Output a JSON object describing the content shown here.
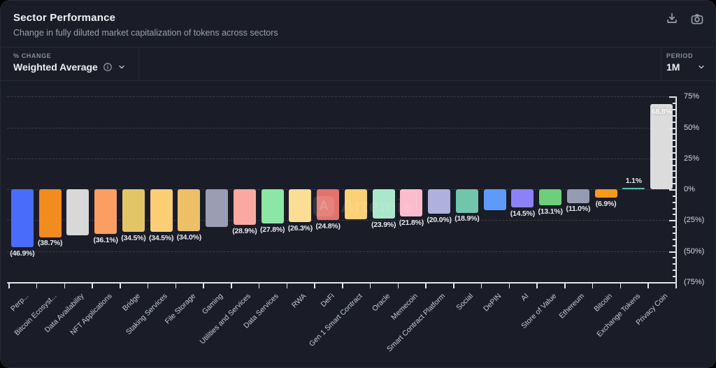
{
  "header": {
    "title": "Sector Performance",
    "subtitle": "Change in fully diluted market capitalization of tokens across sectors",
    "icons": [
      "download-icon",
      "camera-icon"
    ]
  },
  "controls": {
    "metric_label": "% CHANGE",
    "metric_value": "Weighted Average",
    "metric_icons": [
      "info-icon",
      "chevron-down-icon"
    ],
    "period_label": "PERIOD",
    "period_value": "1M",
    "period_icons": [
      "chevron-down-icon"
    ]
  },
  "watermark": {
    "text": "Artemis",
    "logo_glyph": "A"
  },
  "theme": {
    "card_bg": "#1A1D28",
    "text": "#EDEFF3",
    "muted_text": "#9AA0AC",
    "axis": "#E3E5EA",
    "grid": "rgba(255,255,255,0.15)"
  },
  "chart_data": {
    "type": "bar",
    "title": "Sector Performance",
    "xlabel": "",
    "ylabel": "% change",
    "ylim": [
      -75,
      75
    ],
    "grid": "horizontal-dashed",
    "legend": "none",
    "y_ticks": [
      {
        "value": 75,
        "label": "75%"
      },
      {
        "value": 50,
        "label": "50%"
      },
      {
        "value": 25,
        "label": "25%"
      },
      {
        "value": 0,
        "label": "0%"
      },
      {
        "value": -25,
        "label": "(25%)"
      },
      {
        "value": -50,
        "label": "(50%)"
      },
      {
        "value": -75,
        "label": "(75%)"
      }
    ],
    "minor_tick_step": 5,
    "categories": [
      "Perp...",
      "Bitcoin Ecosyst...",
      "Data Availability",
      "NFT Applications",
      "Bridge",
      "Staking Services",
      "File Storage",
      "Gaming",
      "Utilities and Services",
      "Data Services",
      "RWA",
      "DeFi",
      "Gen 1 Smart Contract",
      "Oracle",
      "Memecoin",
      "Smart Contract Platform",
      "Social",
      "DePIN",
      "AI",
      "Store of Value",
      "Ethereum",
      "Bitcoin",
      "Exchange Tokens",
      "Privacy Coin"
    ],
    "values": [
      -46.9,
      -38.7,
      -37.4,
      -36.1,
      -34.5,
      -34.5,
      -34.0,
      -30.3,
      -28.9,
      -27.8,
      -26.3,
      -24.8,
      -24.3,
      -23.9,
      -21.8,
      -20.0,
      -18.9,
      -16.8,
      -14.5,
      -13.1,
      -11.0,
      -6.9,
      1.1,
      68.8
    ],
    "bar_labels": [
      "(46.9%)",
      "(38.7%)",
      "",
      "(36.1%)",
      "(34.5%)",
      "(34.5%)",
      "(34.0%)",
      "",
      "(28.9%)",
      "(27.8%)",
      "(26.3%)",
      "(24.8%)",
      "",
      "(23.9%)",
      "(21.8%)",
      "(20.0%)",
      "(18.9%)",
      "",
      "(14.5%)",
      "(13.1%)",
      "(11.0%)",
      "(6.9%)",
      "1.1%",
      "68.8%"
    ],
    "colors": [
      "#4A6CFA",
      "#F28C1E",
      "#D8D8D8",
      "#FA9E64",
      "#E2C566",
      "#FBCD74",
      "#EDBF67",
      "#9B9DB2",
      "#FBA8A0",
      "#8CE6A5",
      "#FBDD96",
      "#E2736C",
      "#FBD175",
      "#ABE7CA",
      "#FBBCCE",
      "#AFB0DD",
      "#72C4AB",
      "#5E9BF8",
      "#8C82F8",
      "#6FCE79",
      "#959CB1",
      "#F59A1C",
      "#5FC2B0",
      "#DCDCDC"
    ]
  }
}
